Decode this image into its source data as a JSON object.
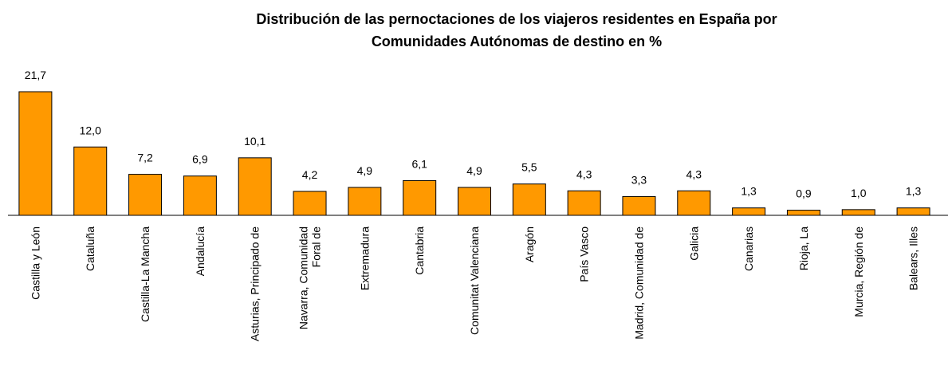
{
  "chart_data": {
    "type": "bar",
    "title": [
      "Distribución de las pernoctaciones de los viajeros residentes en España por",
      "Comunidades Autónomas de destino en %"
    ],
    "categories": [
      "Castilla y León",
      "Cataluña",
      "Castilla-La Mancha",
      "Andalucía",
      "Asturias, Principado de",
      "Navarra, Comunidad Foral de",
      "Extremadura",
      "Cantabria",
      "Comunitat Valenciana",
      "Aragón",
      "País Vasco",
      "Madrid, Comunidad de",
      "Galicia",
      "Canarias",
      "Rioja, La",
      "Murcia, Región de",
      "Balears, Illes"
    ],
    "values": [
      21.7,
      12.0,
      7.2,
      6.9,
      10.1,
      4.2,
      4.9,
      6.1,
      4.9,
      5.5,
      4.3,
      3.3,
      4.3,
      1.3,
      0.9,
      1.0,
      1.3
    ],
    "value_labels": [
      "21,7",
      "12,0",
      "7,2",
      "6,9",
      "10,1",
      "4,2",
      "4,9",
      "6,1",
      "4,9",
      "5,5",
      "4,3",
      "3,3",
      "4,3",
      "1,3",
      "0,9",
      "1,0",
      "1,3"
    ],
    "color": "#ff9900"
  }
}
